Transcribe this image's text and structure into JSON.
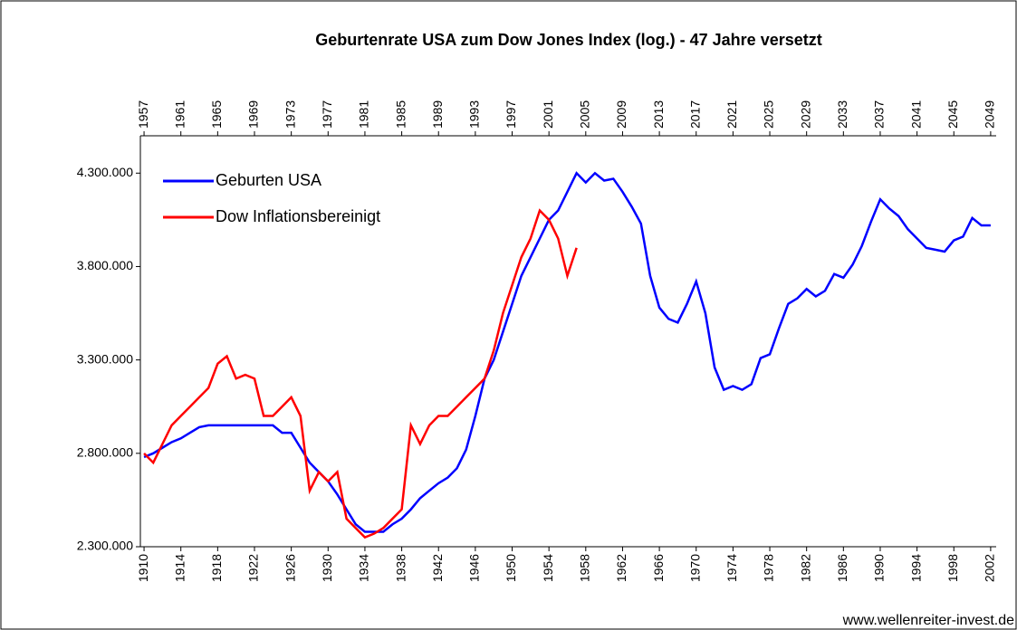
{
  "chart_data": {
    "type": "line",
    "title": "Geburtenrate USA zum Dow Jones Index (log.) -  47 Jahre versetzt",
    "footer": "www.wellenreiter-invest.de",
    "xlim": [
      1909.6,
      2002.6
    ],
    "xticks": [
      1910,
      1914,
      1918,
      1922,
      1926,
      1930,
      1934,
      1938,
      1942,
      1946,
      1950,
      1954,
      1958,
      1962,
      1966,
      1970,
      1974,
      1978,
      1982,
      1986,
      1990,
      1994,
      1998,
      2002
    ],
    "x2lim": [
      1956.6,
      2049.6
    ],
    "x2ticks": [
      1957,
      1961,
      1965,
      1969,
      1973,
      1977,
      1981,
      1985,
      1989,
      1993,
      1997,
      2001,
      2005,
      2009,
      2013,
      2017,
      2021,
      2025,
      2029,
      2033,
      2037,
      2041,
      2045,
      2049
    ],
    "ylim": [
      2300000,
      4500000
    ],
    "yticks": [
      {
        "value": 2300000,
        "label": "2.300.000"
      },
      {
        "value": 2800000,
        "label": "2.800.000"
      },
      {
        "value": 3300000,
        "label": "3.300.000"
      },
      {
        "value": 3800000,
        "label": "3.800.000"
      },
      {
        "value": 4300000,
        "label": "4.300.000"
      }
    ],
    "legend": "upper left",
    "series": [
      {
        "name": "Geburten USA",
        "color": "#0000ff",
        "x": [
          1910,
          1911,
          1912,
          1913,
          1914,
          1915,
          1916,
          1917,
          1918,
          1919,
          1920,
          1921,
          1922,
          1923,
          1924,
          1925,
          1926,
          1927,
          1928,
          1929,
          1930,
          1931,
          1932,
          1933,
          1934,
          1935,
          1936,
          1937,
          1938,
          1939,
          1940,
          1941,
          1942,
          1943,
          1944,
          1945,
          1946,
          1947,
          1948,
          1949,
          1950,
          1951,
          1952,
          1953,
          1954,
          1955,
          1956,
          1957,
          1958,
          1959,
          1960,
          1961,
          1962,
          1963,
          1964,
          1965,
          1966,
          1967,
          1968,
          1969,
          1970,
          1971,
          1972,
          1973,
          1974,
          1975,
          1976,
          1977,
          1978,
          1979,
          1980,
          1981,
          1982,
          1983,
          1984,
          1985,
          1986,
          1987,
          1988,
          1989,
          1990,
          1991,
          1992,
          1993,
          1994,
          1995,
          1996,
          1997,
          1998,
          1999,
          2000,
          2001,
          2002
        ],
        "values": [
          2780000,
          2800000,
          2830000,
          2860000,
          2880000,
          2910000,
          2940000,
          2950000,
          2950000,
          2950000,
          2950000,
          2950000,
          2950000,
          2950000,
          2950000,
          2910000,
          2910000,
          2830000,
          2750000,
          2700000,
          2650000,
          2580000,
          2500000,
          2420000,
          2380000,
          2380000,
          2380000,
          2420000,
          2450000,
          2500000,
          2560000,
          2600000,
          2640000,
          2670000,
          2720000,
          2820000,
          3000000,
          3200000,
          3300000,
          3450000,
          3600000,
          3750000,
          3850000,
          3950000,
          4050000,
          4100000,
          4200000,
          4300000,
          4250000,
          4300000,
          4260000,
          4270000,
          4200000,
          4120000,
          4030000,
          3750000,
          3580000,
          3520000,
          3500000,
          3600000,
          3720000,
          3550000,
          3260000,
          3140000,
          3160000,
          3140000,
          3170000,
          3310000,
          3330000,
          3470000,
          3600000,
          3630000,
          3680000,
          3640000,
          3670000,
          3760000,
          3740000,
          3810000,
          3910000,
          4040000,
          4160000,
          4110000,
          4070000,
          4000000,
          3950000,
          3900000,
          3890000,
          3880000,
          3940000,
          3960000,
          4060000,
          4020000,
          4020000
        ]
      },
      {
        "name": "Dow Inflationsbereinigt",
        "color": "#ff0000",
        "x": [
          1910,
          1911,
          1912,
          1913,
          1914,
          1915,
          1916,
          1917,
          1918,
          1919,
          1920,
          1921,
          1922,
          1923,
          1924,
          1925,
          1926,
          1927,
          1928,
          1929,
          1930,
          1931,
          1932,
          1933,
          1934,
          1935,
          1936,
          1937,
          1938,
          1939,
          1940,
          1941,
          1942,
          1943,
          1944,
          1945,
          1946,
          1947,
          1948,
          1949,
          1950,
          1951,
          1952,
          1953,
          1954,
          1955,
          1956,
          1957
        ],
        "values": [
          2800000,
          2750000,
          2850000,
          2950000,
          3000000,
          3050000,
          3100000,
          3150000,
          3280000,
          3320000,
          3200000,
          3220000,
          3200000,
          3000000,
          3000000,
          3050000,
          3100000,
          3000000,
          2600000,
          2700000,
          2650000,
          2700000,
          2450000,
          2400000,
          2350000,
          2370000,
          2400000,
          2450000,
          2500000,
          2950000,
          2850000,
          2950000,
          3000000,
          3000000,
          3050000,
          3100000,
          3150000,
          3200000,
          3350000,
          3550000,
          3700000,
          3850000,
          3950000,
          4100000,
          4050000,
          3950000,
          3750000,
          3900000
        ]
      }
    ]
  }
}
